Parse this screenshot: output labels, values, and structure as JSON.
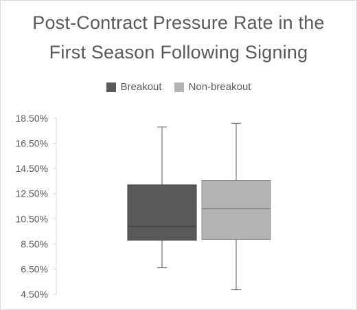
{
  "chart_data": {
    "type": "boxplot",
    "title_lines": [
      "Post-Contract Pressure Rate in the",
      "First Season Following Signing"
    ],
    "xlabel": "",
    "ylabel": "",
    "ylim": [
      4.5,
      18.5
    ],
    "y_ticks": [
      "4.50%",
      "6.50%",
      "8.50%",
      "10.50%",
      "12.50%",
      "14.50%",
      "16.50%",
      "18.50%"
    ],
    "y_tick_values": [
      4.5,
      6.5,
      8.5,
      10.5,
      12.5,
      14.5,
      16.5,
      18.5
    ],
    "grid": false,
    "legend_position": "top",
    "series": [
      {
        "name": "Breakout",
        "color": "#595959",
        "min": 6.6,
        "q1": 8.8,
        "median": 9.9,
        "q3": 13.2,
        "max": 17.8
      },
      {
        "name": "Non-breakout",
        "color": "#b3b3b3",
        "min": 4.85,
        "q1": 8.85,
        "median": 11.3,
        "q3": 13.55,
        "max": 18.1
      }
    ]
  }
}
